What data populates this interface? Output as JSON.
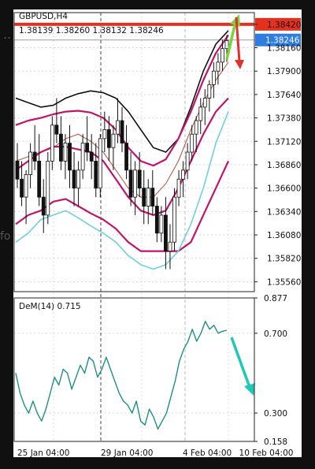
{
  "chart_data": [
    {
      "type": "candlestick",
      "symbol": "GBPUSD,H4",
      "ohlc_header": "1.38139 1.38260 1.38132 1.38246",
      "current_price": "1.38246",
      "resistance_level": "1.38420",
      "y_ticks": [
        "1.38420",
        "1.38160",
        "1.37900",
        "1.37640",
        "1.37380",
        "1.37120",
        "1.36860",
        "1.36600",
        "1.36340",
        "1.36080",
        "1.35820",
        "1.35560"
      ],
      "ylim": [
        1.3545,
        1.3855
      ],
      "x_ticks": [
        "25 Jan 04:00",
        "29 Jan 04:00",
        "4 Feb 04:00",
        "10 Feb 04:00"
      ],
      "candles": [
        [
          1.369,
          1.371,
          1.366,
          1.367
        ],
        [
          1.367,
          1.369,
          1.364,
          1.365
        ],
        [
          1.365,
          1.368,
          1.362,
          1.3675
        ],
        [
          1.3675,
          1.371,
          1.366,
          1.37
        ],
        [
          1.37,
          1.373,
          1.368,
          1.369
        ],
        [
          1.369,
          1.372,
          1.364,
          1.365
        ],
        [
          1.365,
          1.367,
          1.361,
          1.363
        ],
        [
          1.363,
          1.37,
          1.362,
          1.369
        ],
        [
          1.369,
          1.374,
          1.368,
          1.373
        ],
        [
          1.373,
          1.376,
          1.371,
          1.372
        ],
        [
          1.372,
          1.374,
          1.368,
          1.369
        ],
        [
          1.369,
          1.372,
          1.367,
          1.371
        ],
        [
          1.371,
          1.373,
          1.366,
          1.368
        ],
        [
          1.368,
          1.37,
          1.364,
          1.366
        ],
        [
          1.366,
          1.369,
          1.364,
          1.368
        ],
        [
          1.368,
          1.372,
          1.367,
          1.371
        ],
        [
          1.371,
          1.374,
          1.369,
          1.37
        ],
        [
          1.37,
          1.372,
          1.367,
          1.369
        ],
        [
          1.369,
          1.371,
          1.365,
          1.366
        ],
        [
          1.366,
          1.372,
          1.365,
          1.3715
        ],
        [
          1.3715,
          1.3745,
          1.37,
          1.3725
        ],
        [
          1.3725,
          1.374,
          1.369,
          1.3705
        ],
        [
          1.3705,
          1.373,
          1.368,
          1.372
        ],
        [
          1.372,
          1.376,
          1.371,
          1.3735
        ],
        [
          1.3735,
          1.375,
          1.37,
          1.371
        ],
        [
          1.371,
          1.373,
          1.367,
          1.368
        ],
        [
          1.368,
          1.37,
          1.364,
          1.365
        ],
        [
          1.365,
          1.369,
          1.363,
          1.368
        ],
        [
          1.368,
          1.37,
          1.365,
          1.366
        ],
        [
          1.366,
          1.368,
          1.362,
          1.364
        ],
        [
          1.364,
          1.367,
          1.362,
          1.366
        ],
        [
          1.366,
          1.368,
          1.363,
          1.364
        ],
        [
          1.364,
          1.365,
          1.36,
          1.361
        ],
        [
          1.361,
          1.364,
          1.36,
          1.363
        ],
        [
          1.363,
          1.365,
          1.357,
          1.359
        ],
        [
          1.359,
          1.362,
          1.357,
          1.36
        ],
        [
          1.36,
          1.366,
          1.359,
          1.365
        ],
        [
          1.365,
          1.368,
          1.364,
          1.367
        ],
        [
          1.367,
          1.369,
          1.365,
          1.368
        ],
        [
          1.368,
          1.371,
          1.367,
          1.37
        ],
        [
          1.37,
          1.373,
          1.369,
          1.372
        ],
        [
          1.372,
          1.374,
          1.37,
          1.3735
        ],
        [
          1.3735,
          1.376,
          1.372,
          1.375
        ],
        [
          1.375,
          1.377,
          1.373,
          1.376
        ],
        [
          1.376,
          1.378,
          1.3745,
          1.3775
        ],
        [
          1.3775,
          1.38,
          1.376,
          1.379
        ],
        [
          1.379,
          1.381,
          1.3775,
          1.38
        ],
        [
          1.38,
          1.3825,
          1.379,
          1.3815
        ],
        [
          1.3815,
          1.383,
          1.38,
          1.3824
        ]
      ],
      "bands_outer_upper": [
        1.376,
        1.3755,
        1.375,
        1.3752,
        1.376,
        1.3765,
        1.3768,
        1.3766,
        1.376,
        1.3745,
        1.3725,
        1.3705,
        1.37,
        1.3715,
        1.375,
        1.379,
        1.382,
        1.3835
      ],
      "bands_inner_upper": [
        1.373,
        1.3735,
        1.3738,
        1.3742,
        1.3745,
        1.3746,
        1.3744,
        1.3738,
        1.3725,
        1.3705,
        1.369,
        1.3685,
        1.3692,
        1.3715,
        1.3745,
        1.378,
        1.381,
        1.383
      ],
      "bands_mid_inner": [
        1.368,
        1.369,
        1.37,
        1.3706,
        1.3706,
        1.3703,
        1.37,
        1.369,
        1.367,
        1.365,
        1.3635,
        1.363,
        1.3635,
        1.366,
        1.369,
        1.372,
        1.3745,
        1.376
      ],
      "ma_line": [
        1.369,
        1.3695,
        1.37,
        1.3705,
        1.3715,
        1.372,
        1.3712,
        1.37,
        1.368,
        1.366,
        1.365,
        1.365,
        1.3665,
        1.369,
        1.3725,
        1.3755,
        1.378,
        1.38
      ],
      "bands_inner_lower": [
        1.362,
        1.363,
        1.3635,
        1.3645,
        1.3648,
        1.364,
        1.3632,
        1.3625,
        1.3615,
        1.36,
        1.359,
        1.359,
        1.359,
        1.359,
        1.36,
        1.363,
        1.366,
        1.369
      ],
      "bands_outer_lower": [
        1.36,
        1.361,
        1.3625,
        1.363,
        1.3635,
        1.3627,
        1.3618,
        1.361,
        1.36,
        1.3585,
        1.3575,
        1.357,
        1.3575,
        1.359,
        1.362,
        1.366,
        1.371,
        1.3745
      ]
    },
    {
      "type": "line",
      "indicator_label": "DeM(14) 0.715",
      "y_ticks": [
        "0.877",
        "0.700",
        "0.300",
        "0.158"
      ],
      "ylim": [
        0.158,
        0.877
      ],
      "values": [
        0.5,
        0.4,
        0.34,
        0.3,
        0.36,
        0.3,
        0.26,
        0.32,
        0.4,
        0.48,
        0.44,
        0.52,
        0.5,
        0.42,
        0.48,
        0.54,
        0.5,
        0.58,
        0.56,
        0.48,
        0.52,
        0.58,
        0.52,
        0.46,
        0.4,
        0.36,
        0.34,
        0.3,
        0.36,
        0.26,
        0.24,
        0.32,
        0.28,
        0.22,
        0.26,
        0.3,
        0.38,
        0.46,
        0.56,
        0.62,
        0.66,
        0.72,
        0.66,
        0.7,
        0.76,
        0.72,
        0.74,
        0.7,
        0.71,
        0.715
      ]
    }
  ]
}
